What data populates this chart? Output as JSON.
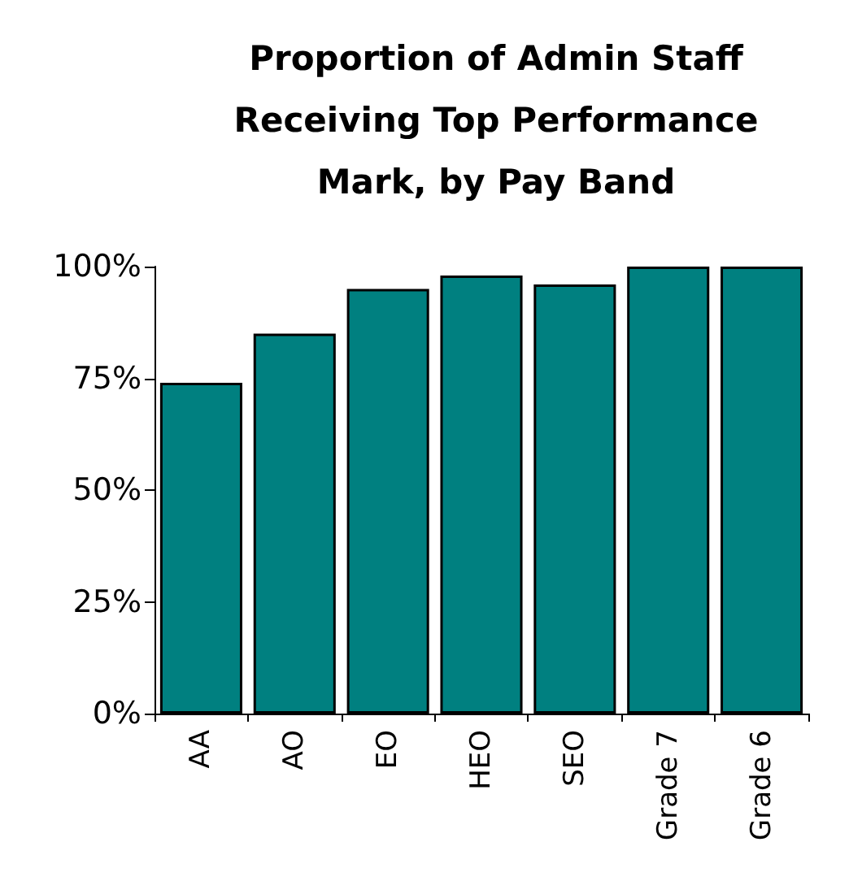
{
  "chart_data": {
    "type": "bar",
    "title": "Proportion of Admin Staff\nReceiving Top Performance\nMark, by Pay Band",
    "categories": [
      "AA",
      "AO",
      "EO",
      "HEO",
      "SEO",
      "Grade 7",
      "Grade 6"
    ],
    "values": [
      74,
      85,
      95,
      98,
      96,
      100,
      100
    ],
    "color": "#008080",
    "ylim": [
      0,
      100
    ],
    "yticks": [
      {
        "value": 0,
        "label": "0%"
      },
      {
        "value": 25,
        "label": "25%"
      },
      {
        "value": 50,
        "label": "50%"
      },
      {
        "value": 75,
        "label": "75%"
      },
      {
        "value": 100,
        "label": "100%"
      }
    ],
    "grid": false
  }
}
